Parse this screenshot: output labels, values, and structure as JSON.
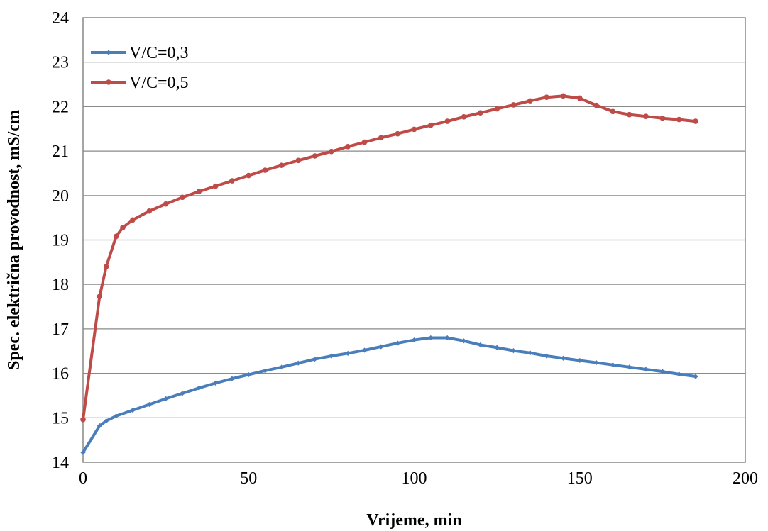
{
  "chart_data": {
    "type": "line",
    "xlabel": "Vrijeme, min",
    "ylabel": "Spec. električna provodnost, mS/cm",
    "xlim": [
      0,
      200
    ],
    "ylim": [
      14,
      24
    ],
    "xticks": [
      0,
      50,
      100,
      150,
      200
    ],
    "yticks": [
      14,
      15,
      16,
      17,
      18,
      19,
      20,
      21,
      22,
      23,
      24
    ],
    "xtick_labels": [
      "0",
      "50",
      "100",
      "150",
      "200"
    ],
    "ytick_labels": [
      "14",
      "15",
      "16",
      "17",
      "18",
      "19",
      "20",
      "21",
      "22",
      "23",
      "24"
    ],
    "grid": "horizontal",
    "legend_position": "top-left",
    "series": [
      {
        "name": "V/C=0,3",
        "color": "#4a7ebb",
        "marker": "diamond",
        "x": [
          0,
          5,
          7,
          10,
          15,
          20,
          25,
          30,
          35,
          40,
          45,
          50,
          55,
          60,
          65,
          70,
          75,
          80,
          85,
          90,
          95,
          100,
          105,
          110,
          115,
          120,
          125,
          130,
          135,
          140,
          145,
          150,
          155,
          160,
          165,
          170,
          175,
          180,
          185
        ],
        "values": [
          14.22,
          14.82,
          14.93,
          15.04,
          15.17,
          15.3,
          15.43,
          15.55,
          15.67,
          15.78,
          15.88,
          15.97,
          16.06,
          16.14,
          16.23,
          16.32,
          16.39,
          16.45,
          16.52,
          16.6,
          16.68,
          16.75,
          16.8,
          16.8,
          16.73,
          16.64,
          16.58,
          16.51,
          16.46,
          16.39,
          16.34,
          16.29,
          16.24,
          16.19,
          16.14,
          16.09,
          16.04,
          15.98,
          15.93
        ]
      },
      {
        "name": "V/C=0,5",
        "color": "#be4b48",
        "marker": "circle",
        "x": [
          0,
          5,
          7,
          10,
          12,
          15,
          20,
          25,
          30,
          35,
          40,
          45,
          50,
          55,
          60,
          65,
          70,
          75,
          80,
          85,
          90,
          95,
          100,
          105,
          110,
          115,
          120,
          125,
          130,
          135,
          140,
          145,
          150,
          155,
          160,
          165,
          170,
          175,
          180,
          185
        ],
        "values": [
          14.96,
          17.73,
          18.4,
          19.08,
          19.28,
          19.45,
          19.65,
          19.81,
          19.96,
          20.09,
          20.21,
          20.33,
          20.45,
          20.57,
          20.68,
          20.79,
          20.89,
          20.99,
          21.1,
          21.2,
          21.3,
          21.39,
          21.49,
          21.58,
          21.67,
          21.77,
          21.86,
          21.95,
          22.04,
          22.13,
          22.21,
          22.24,
          22.19,
          22.03,
          21.89,
          21.82,
          21.78,
          21.74,
          21.71,
          21.67
        ]
      }
    ]
  }
}
